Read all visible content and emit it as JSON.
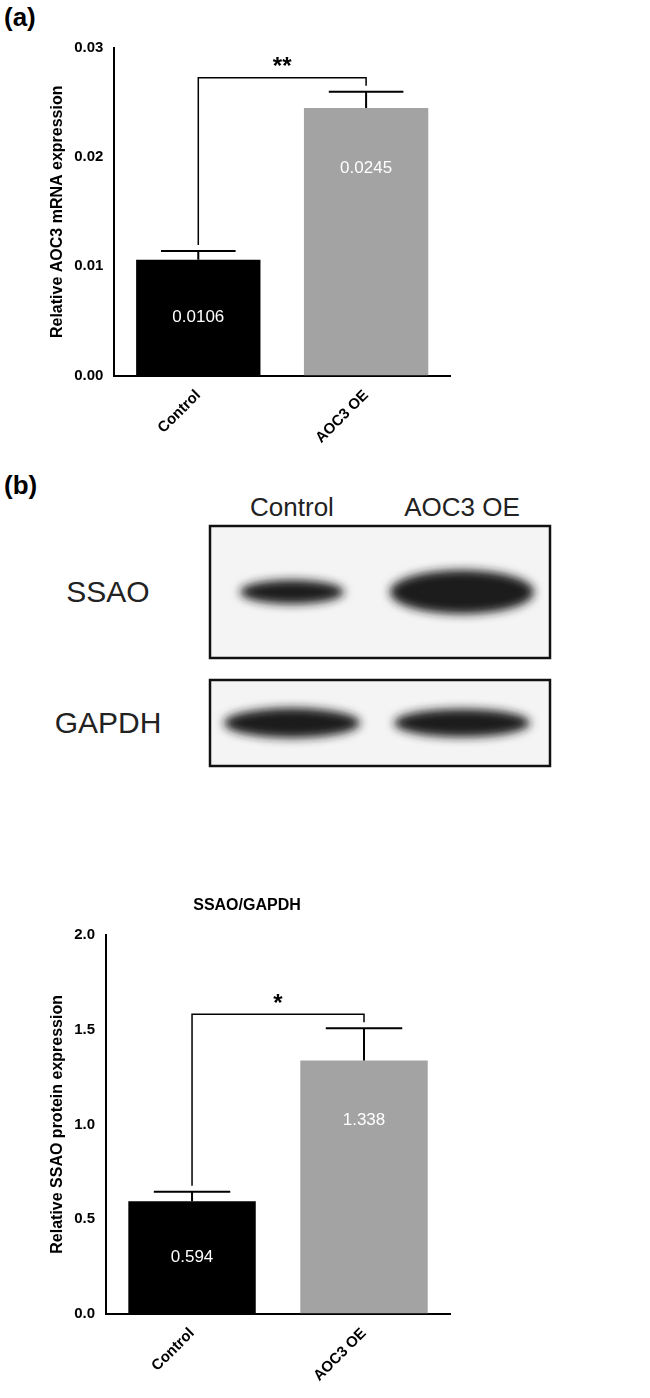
{
  "panel_labels": [
    "(a)",
    "(b)"
  ],
  "blot": {
    "lanes": [
      "Control",
      "AOC3 OE"
    ],
    "rows": [
      "SSAO",
      "GAPDH"
    ]
  },
  "chart_data": [
    {
      "type": "bar",
      "y_label": "Relative AOC3 mRNA expression",
      "categories": [
        "Control",
        "AOC3 OE"
      ],
      "values": [
        0.0106,
        0.0245
      ],
      "errors": [
        0.0008,
        0.0015
      ],
      "colors": [
        "#000000",
        "#a3a3a3"
      ],
      "ylim": [
        0,
        0.03
      ],
      "yticks": [
        {
          "value": 0,
          "label": "0.00"
        },
        0.01,
        0.02,
        0.03
      ],
      "grid": false,
      "data_labels": true,
      "annotations": [
        {
          "text": "**",
          "from": "Control",
          "to": "AOC3 OE"
        }
      ]
    },
    {
      "type": "bar",
      "title": "SSAO/GAPDH",
      "y_label": "Relative SSAO protein expression",
      "categories": [
        "Control",
        "AOC3 OE"
      ],
      "values": [
        0.594,
        1.338
      ],
      "errors": [
        0.05,
        0.17
      ],
      "colors": [
        "#000000",
        "#a3a3a3"
      ],
      "ylim": [
        0,
        2
      ],
      "yticks": [
        {
          "value": 0,
          "label": "0.0"
        },
        0.5,
        {
          "value": 1,
          "label": "1.0"
        },
        1.5,
        {
          "value": 2,
          "label": "2.0"
        }
      ],
      "grid": false,
      "data_labels": true,
      "annotations": [
        {
          "text": "*",
          "from": "Control",
          "to": "AOC3 OE"
        }
      ]
    }
  ]
}
